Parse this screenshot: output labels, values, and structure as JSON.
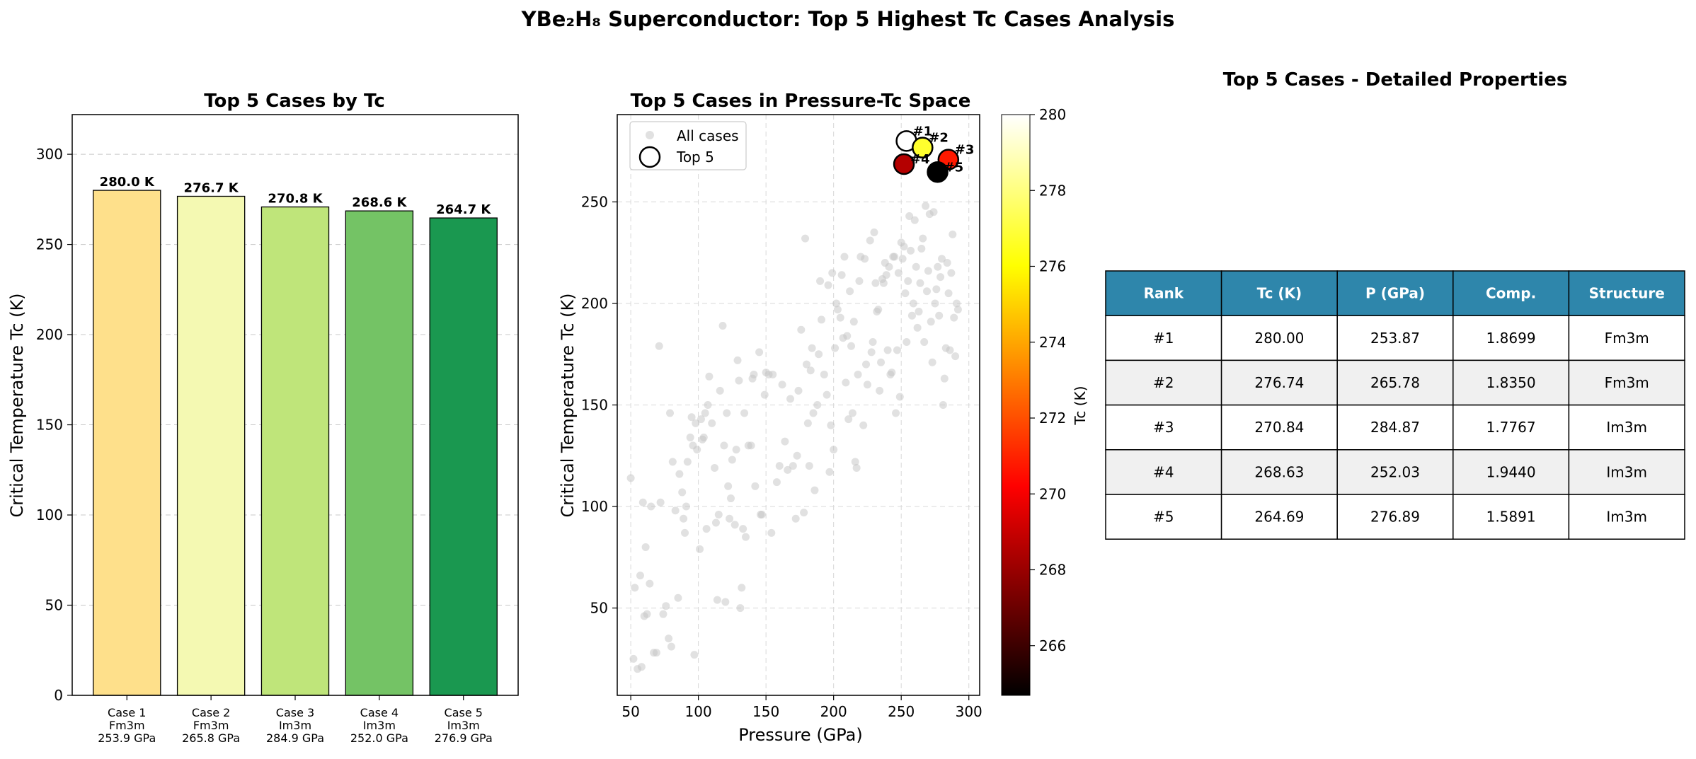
{
  "figure_title": "YBe₂H₈ Superconductor: Top 5 Highest Tc Cases Analysis",
  "chart_data": [
    {
      "type": "bar",
      "title": "Top 5 Cases by Tc",
      "xlabel": "",
      "ylabel": "Critical Temperature Tc (K)",
      "ylim": [
        0,
        322
      ],
      "yticks": [
        0,
        50,
        100,
        150,
        200,
        250,
        300
      ],
      "grid": "y-dashed",
      "categories": [
        [
          "Case 1",
          "Fm3m",
          "253.9 GPa"
        ],
        [
          "Case 2",
          "Fm3m",
          "265.8 GPa"
        ],
        [
          "Case 3",
          "Im3m",
          "284.9 GPa"
        ],
        [
          "Case 4",
          "Im3m",
          "252.0 GPa"
        ],
        [
          "Case 5",
          "Im3m",
          "276.9 GPa"
        ]
      ],
      "values": [
        280.0,
        276.7,
        270.8,
        268.6,
        264.7
      ],
      "value_labels": [
        "280.0 K",
        "276.7 K",
        "270.8 K",
        "268.6 K",
        "264.7 K"
      ],
      "colors": [
        "#fee08b",
        "#f4f9b2",
        "#bfe57a",
        "#74c365",
        "#1a9850"
      ]
    },
    {
      "type": "scatter",
      "title": "Top 5 Cases in Pressure-Tc Space",
      "xlabel": "Pressure (GPa)",
      "ylabel": "Critical Temperature Tc (K)",
      "xlim": [
        40,
        308
      ],
      "ylim": [
        7,
        293
      ],
      "xticks": [
        50,
        100,
        150,
        200,
        250,
        300
      ],
      "yticks": [
        50,
        100,
        150,
        200,
        250
      ],
      "grid": "both-dashed",
      "legend_position": "top-left",
      "legend": [
        "All cases",
        "Top 5"
      ],
      "colorbar": {
        "label": "Tc (K)",
        "range": [
          264.69,
          280.0
        ],
        "ticks": [
          266,
          268,
          270,
          272,
          274,
          276,
          278,
          280
        ]
      },
      "all_cases": [
        [
          50,
          114
        ],
        [
          53,
          60
        ],
        [
          52,
          25
        ],
        [
          55,
          20
        ],
        [
          57,
          66
        ],
        [
          58,
          21
        ],
        [
          59,
          102
        ],
        [
          60,
          46
        ],
        [
          61,
          80
        ],
        [
          62,
          47
        ],
        [
          64,
          62
        ],
        [
          65,
          100
        ],
        [
          67,
          28
        ],
        [
          69,
          28
        ],
        [
          71,
          179
        ],
        [
          72,
          102
        ],
        [
          74,
          47
        ],
        [
          76,
          51
        ],
        [
          78,
          35
        ],
        [
          79,
          146
        ],
        [
          80,
          31
        ],
        [
          81,
          122
        ],
        [
          83,
          98
        ],
        [
          85,
          55
        ],
        [
          86,
          116
        ],
        [
          88,
          107
        ],
        [
          89,
          94
        ],
        [
          90,
          87
        ],
        [
          91,
          100
        ],
        [
          92,
          122
        ],
        [
          94,
          134
        ],
        [
          95,
          144
        ],
        [
          96,
          130
        ],
        [
          97,
          27
        ],
        [
          98,
          141
        ],
        [
          99,
          128
        ],
        [
          101,
          79
        ],
        [
          102,
          143
        ],
        [
          103,
          133
        ],
        [
          104,
          134
        ],
        [
          105,
          146
        ],
        [
          106,
          89
        ],
        [
          107,
          150
        ],
        [
          108,
          164
        ],
        [
          110,
          141
        ],
        [
          112,
          119
        ],
        [
          113,
          92
        ],
        [
          114,
          54
        ],
        [
          115,
          96
        ],
        [
          116,
          157
        ],
        [
          118,
          189
        ],
        [
          119,
          130
        ],
        [
          120,
          53
        ],
        [
          121,
          146
        ],
        [
          122,
          110
        ],
        [
          123,
          94
        ],
        [
          124,
          104
        ],
        [
          125,
          123
        ],
        [
          127,
          91
        ],
        [
          128,
          128
        ],
        [
          129,
          172
        ],
        [
          130,
          162
        ],
        [
          131,
          50
        ],
        [
          132,
          60
        ],
        [
          133,
          89
        ],
        [
          134,
          146
        ],
        [
          135,
          85
        ],
        [
          137,
          130
        ],
        [
          139,
          130
        ],
        [
          140,
          163
        ],
        [
          141,
          165
        ],
        [
          142,
          110
        ],
        [
          145,
          176
        ],
        [
          146,
          96
        ],
        [
          147,
          96
        ],
        [
          149,
          155
        ],
        [
          150,
          166
        ],
        [
          152,
          165
        ],
        [
          154,
          87
        ],
        [
          155,
          165
        ],
        [
          158,
          112
        ],
        [
          160,
          120
        ],
        [
          162,
          160
        ],
        [
          164,
          132
        ],
        [
          166,
          118
        ],
        [
          168,
          153
        ],
        [
          170,
          120
        ],
        [
          172,
          94
        ],
        [
          173,
          125
        ],
        [
          174,
          157
        ],
        [
          176,
          187
        ],
        [
          178,
          97
        ],
        [
          179,
          232
        ],
        [
          180,
          170
        ],
        [
          181,
          141
        ],
        [
          182,
          120
        ],
        [
          183,
          167
        ],
        [
          184,
          178
        ],
        [
          185,
          146
        ],
        [
          186,
          108
        ],
        [
          188,
          150
        ],
        [
          189,
          175
        ],
        [
          190,
          211
        ],
        [
          191,
          192
        ],
        [
          193,
          165
        ],
        [
          195,
          155
        ],
        [
          196,
          209
        ],
        [
          197,
          117
        ],
        [
          198,
          140
        ],
        [
          199,
          215
        ],
        [
          200,
          128
        ],
        [
          201,
          178
        ],
        [
          202,
          200
        ],
        [
          203,
          197
        ],
        [
          205,
          193
        ],
        [
          206,
          214
        ],
        [
          207,
          183
        ],
        [
          208,
          223
        ],
        [
          209,
          161
        ],
        [
          210,
          184
        ],
        [
          211,
          143
        ],
        [
          212,
          206
        ],
        [
          213,
          179
        ],
        [
          214,
          146
        ],
        [
          215,
          191
        ],
        [
          216,
          122
        ],
        [
          217,
          119
        ],
        [
          218,
          165
        ],
        [
          219,
          211
        ],
        [
          220,
          223
        ],
        [
          222,
          140
        ],
        [
          223,
          222
        ],
        [
          224,
          170
        ],
        [
          225,
          160
        ],
        [
          227,
          231
        ],
        [
          228,
          176
        ],
        [
          229,
          181
        ],
        [
          230,
          235
        ],
        [
          231,
          210
        ],
        [
          232,
          196
        ],
        [
          233,
          197
        ],
        [
          234,
          157
        ],
        [
          235,
          171
        ],
        [
          236,
          212
        ],
        [
          237,
          210
        ],
        [
          238,
          220
        ],
        [
          239,
          214
        ],
        [
          240,
          177
        ],
        [
          241,
          218
        ],
        [
          242,
          165
        ],
        [
          243,
          166
        ],
        [
          244,
          223
        ],
        [
          245,
          223
        ],
        [
          246,
          146
        ],
        [
          247,
          177
        ],
        [
          248,
          215
        ],
        [
          249,
          154
        ],
        [
          250,
          230
        ],
        [
          251,
          222
        ],
        [
          252,
          228
        ],
        [
          253,
          205
        ],
        [
          254,
          181
        ],
        [
          255,
          211
        ],
        [
          256,
          243
        ],
        [
          257,
          226
        ],
        [
          258,
          194
        ],
        [
          259,
          200
        ],
        [
          260,
          241
        ],
        [
          261,
          218
        ],
        [
          262,
          188
        ],
        [
          263,
          196
        ],
        [
          264,
          210
        ],
        [
          265,
          227
        ],
        [
          266,
          232
        ],
        [
          267,
          181
        ],
        [
          268,
          248
        ],
        [
          269,
          206
        ],
        [
          270,
          216
        ],
        [
          271,
          244
        ],
        [
          272,
          191
        ],
        [
          273,
          171
        ],
        [
          274,
          245
        ],
        [
          275,
          200
        ],
        [
          276,
          207
        ],
        [
          277,
          218
        ],
        [
          278,
          194
        ],
        [
          279,
          213
        ],
        [
          280,
          222
        ],
        [
          281,
          150
        ],
        [
          282,
          163
        ],
        [
          283,
          178
        ],
        [
          284,
          220
        ],
        [
          285,
          205
        ],
        [
          286,
          177
        ],
        [
          287,
          215
        ],
        [
          288,
          234
        ],
        [
          289,
          193
        ],
        [
          290,
          174
        ],
        [
          291,
          200
        ],
        [
          292,
          197
        ]
      ],
      "top5": [
        {
          "label": "#1",
          "p": 253.87,
          "tc": 280.0
        },
        {
          "label": "#2",
          "p": 265.78,
          "tc": 276.74
        },
        {
          "label": "#3",
          "p": 284.87,
          "tc": 270.84
        },
        {
          "label": "#4",
          "p": 252.03,
          "tc": 268.63
        },
        {
          "label": "#5",
          "p": 276.89,
          "tc": 264.69
        }
      ]
    },
    {
      "type": "table",
      "title": "Top 5 Cases - Detailed Properties",
      "columns": [
        "Rank",
        "Tc (K)",
        "P (GPa)",
        "Comp.",
        "Structure"
      ],
      "rows": [
        [
          "#1",
          "280.00",
          "253.87",
          "1.8699",
          "Fm3m"
        ],
        [
          "#2",
          "276.74",
          "265.78",
          "1.8350",
          "Fm3m"
        ],
        [
          "#3",
          "270.84",
          "284.87",
          "1.7767",
          "Im3m"
        ],
        [
          "#4",
          "268.63",
          "252.03",
          "1.9440",
          "Im3m"
        ],
        [
          "#5",
          "264.69",
          "276.89",
          "1.5891",
          "Im3m"
        ]
      ],
      "header_color": "#2e86ab",
      "stripe_color": "#f0f0f0"
    }
  ]
}
